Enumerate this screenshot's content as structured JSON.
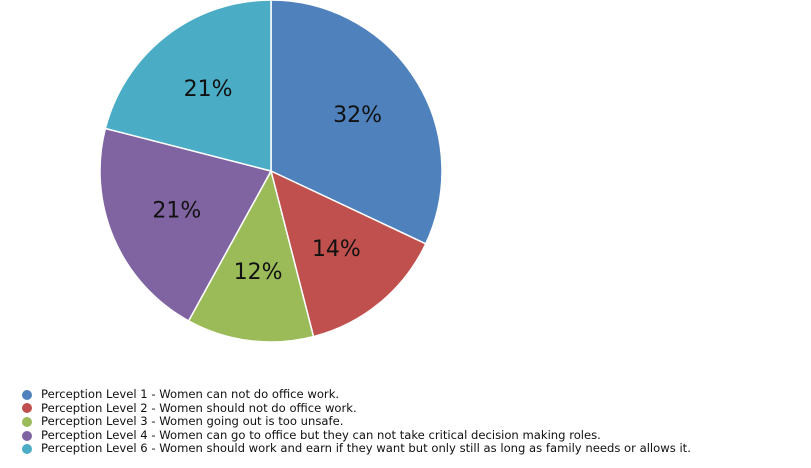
{
  "chart_data": {
    "type": "pie",
    "title": "",
    "slices": [
      {
        "label": "Perception Level 1 -  Women can not do office work.",
        "value": 32,
        "display": "32%",
        "color": "#4f81bd"
      },
      {
        "label": "Perception Level 2 -  Women should not do office work.",
        "value": 14,
        "display": "14%",
        "color": "#c0504d"
      },
      {
        "label": "Perception Level 3 -  Women going out is too unsafe.",
        "value": 12,
        "display": "12%",
        "color": "#9bbb59"
      },
      {
        "label": "Perception Level 4 -  Women can go to office but they can not take critical decision making roles.",
        "value": 21,
        "display": "21%",
        "color": "#8064a2"
      },
      {
        "label": "Perception Level 6 -  Women should work and earn if they want but only still as long as family needs or allows it.",
        "value": 21,
        "display": "21%",
        "color": "#4bacc6"
      }
    ],
    "legend_position": "bottom-left"
  }
}
